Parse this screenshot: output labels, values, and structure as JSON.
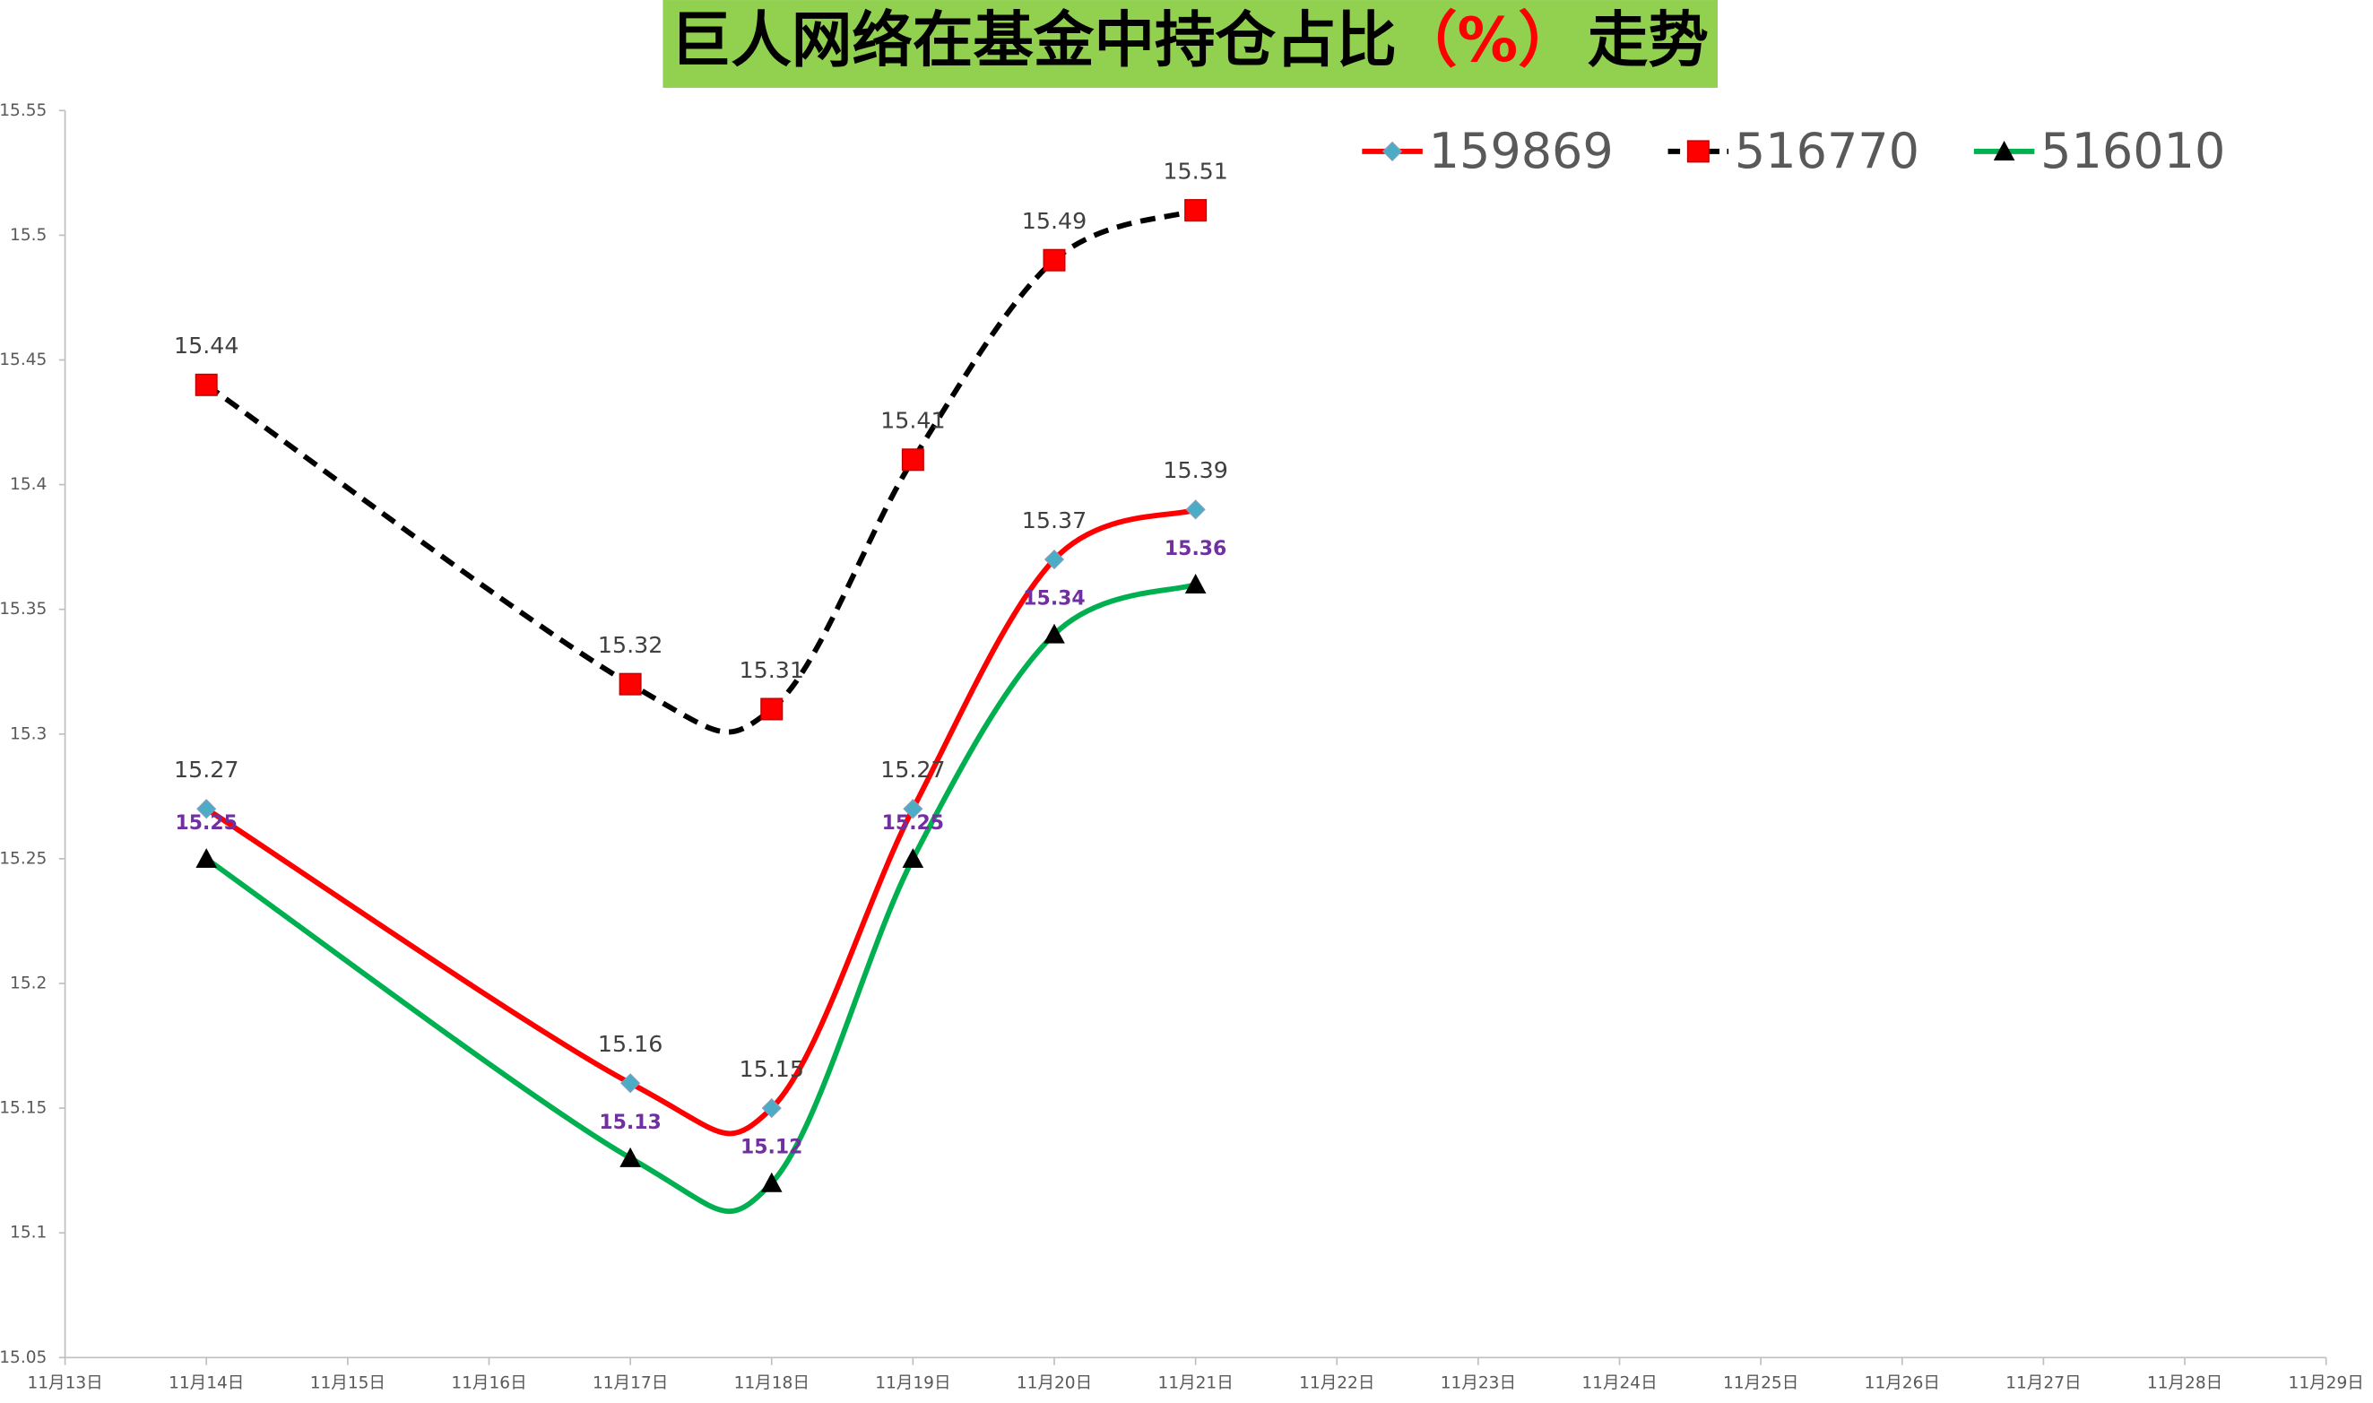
{
  "chart_data": {
    "type": "line",
    "title": [
      "巨人网络在基金中持仓占比",
      "（%）",
      "走势"
    ],
    "xticks": [
      "11月13日",
      "11月14日",
      "11月15日",
      "11月16日",
      "11月17日",
      "11月18日",
      "11月19日",
      "11月20日",
      "11月21日",
      "11月22日",
      "11月23日",
      "11月24日",
      "11月25日",
      "11月26日",
      "11月27日",
      "11月28日",
      "11月29日"
    ],
    "x": [
      "11月14日",
      "11月17日",
      "11月18日",
      "11月19日",
      "11月20日",
      "11月21日"
    ],
    "ylim": [
      15.05,
      15.55
    ],
    "yticks": [
      15.05,
      15.1,
      15.15,
      15.2,
      15.25,
      15.3,
      15.35,
      15.4,
      15.45,
      15.5,
      15.55
    ],
    "smooth": true,
    "legend": "top-right",
    "series": [
      {
        "name": "159869",
        "color": "#ff0000",
        "marker": "diamond",
        "marker_color": "#4bacc6",
        "dash": false,
        "label_color": "#404040",
        "values": [
          15.27,
          15.16,
          15.15,
          15.27,
          15.37,
          15.39
        ]
      },
      {
        "name": "516770",
        "color": "#000000",
        "marker": "square",
        "marker_color": "#ff0000",
        "dash": true,
        "label_color": "#404040",
        "values": [
          15.44,
          15.32,
          15.31,
          15.41,
          15.49,
          15.51
        ]
      },
      {
        "name": "516010",
        "color": "#00b050",
        "marker": "triangle",
        "marker_color": "#000000",
        "dash": false,
        "label_color": "#7030a0",
        "values": [
          15.25,
          15.13,
          15.12,
          15.25,
          15.34,
          15.36
        ]
      }
    ]
  }
}
